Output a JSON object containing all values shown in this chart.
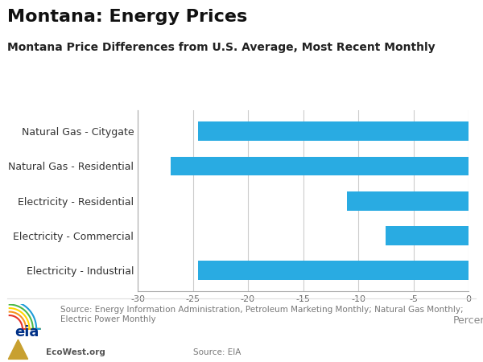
{
  "title": "Montana: Energy Prices",
  "subtitle": "Montana Price Differences from U.S. Average, Most Recent Monthly",
  "categories": [
    "Electricity - Industrial",
    "Electricity - Commercial",
    "Electricity - Residential",
    "Natural Gas - Residential",
    "Natural Gas - Citygate"
  ],
  "values": [
    -24.5,
    -7.5,
    -11.0,
    -27.0,
    -24.5
  ],
  "bar_color": "#29ABE2",
  "xlim": [
    -30,
    0
  ],
  "xticks": [
    -30,
    -25,
    -20,
    -15,
    -10,
    -5,
    0
  ],
  "xlabel": "Percent",
  "background_color": "#FFFFFF",
  "grid_color": "#CCCCCC",
  "source_text": "Source: Energy Information Administration, Petroleum Marketing Monthly; Natural Gas Monthly;\nElectric Power Monthly",
  "source_right": "Source: EIA",
  "ecowest_text": "EcoWest.org",
  "title_fontsize": 16,
  "subtitle_fontsize": 10,
  "axis_label_fontsize": 9,
  "tick_fontsize": 8,
  "footer_fontsize": 7.5
}
